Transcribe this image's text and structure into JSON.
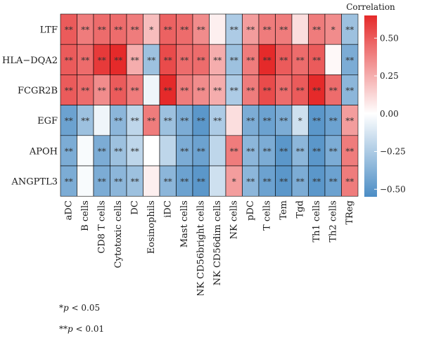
{
  "chart_data": {
    "type": "heatmap",
    "rows": [
      "LTF",
      "HLA−DQA2",
      "FCGR2B",
      "EGF",
      "APOH",
      "ANGPTL3"
    ],
    "columns": [
      "aDC",
      "B cells",
      "CD8 T cells",
      "Cytotoxic cells",
      "DC",
      "Eosinophils",
      "iDC",
      "Mast cells",
      "NK CD56bright cells",
      "NK CD56dim cells",
      "NK cells",
      "pDC",
      "T cells",
      "Tem",
      "Tgd",
      "Th1 cells",
      "Th2 cells",
      "TReg"
    ],
    "values": [
      [
        0.5,
        0.4,
        0.45,
        0.45,
        0.4,
        0.2,
        0.48,
        0.45,
        0.35,
        0.05,
        -0.25,
        0.3,
        0.4,
        0.4,
        0.1,
        0.4,
        0.35,
        -0.3
      ],
      [
        0.5,
        0.45,
        0.6,
        0.65,
        0.25,
        -0.3,
        0.55,
        0.45,
        0.45,
        0.25,
        -0.3,
        0.4,
        0.65,
        0.5,
        0.45,
        0.5,
        0.02,
        -0.4
      ],
      [
        0.5,
        0.45,
        0.35,
        0.5,
        0.4,
        -0.05,
        0.65,
        0.4,
        0.35,
        0.25,
        -0.25,
        0.4,
        0.55,
        0.45,
        0.5,
        0.65,
        0.45,
        -0.35
      ],
      [
        -0.45,
        -0.3,
        -0.05,
        -0.35,
        -0.2,
        0.4,
        -0.3,
        -0.4,
        -0.5,
        -0.25,
        0.1,
        -0.4,
        -0.45,
        -0.4,
        -0.15,
        -0.5,
        -0.45,
        0.3
      ],
      [
        -0.4,
        -0.02,
        -0.4,
        -0.3,
        -0.2,
        0.0,
        -0.2,
        -0.4,
        -0.45,
        -0.2,
        0.4,
        -0.35,
        -0.4,
        -0.5,
        -0.35,
        -0.5,
        -0.4,
        0.4
      ],
      [
        -0.4,
        -0.02,
        -0.4,
        -0.35,
        -0.3,
        0.05,
        -0.35,
        -0.45,
        -0.5,
        -0.15,
        0.3,
        -0.35,
        -0.45,
        -0.5,
        -0.4,
        -0.5,
        -0.45,
        0.4
      ]
    ],
    "stars": [
      [
        "**",
        "**",
        "**",
        "**",
        "**",
        "*",
        "**",
        "**",
        "**",
        "",
        "**",
        "**",
        "**",
        "**",
        "",
        "**",
        "*",
        "**"
      ],
      [
        "**",
        "**",
        "**",
        "**",
        "**",
        "**",
        "**",
        "**",
        "**",
        "**",
        "**",
        "**",
        "**",
        "**",
        "**",
        "**",
        "",
        "**"
      ],
      [
        "**",
        "**",
        "**",
        "**",
        "**",
        "",
        "**",
        "**",
        "**",
        "**",
        "**",
        "**",
        "**",
        "**",
        "**",
        "**",
        "**",
        "**"
      ],
      [
        "**",
        "**",
        "",
        "**",
        "**",
        "**",
        "**",
        "**",
        "**",
        "**",
        "",
        "**",
        "**",
        "**",
        "*",
        "**",
        "**",
        "**"
      ],
      [
        "**",
        "",
        "**",
        "**",
        "**",
        "",
        "",
        "**",
        "**",
        "",
        "**",
        "**",
        "**",
        "**",
        "**",
        "**",
        "**",
        "**"
      ],
      [
        "**",
        "",
        "**",
        "**",
        "**",
        "",
        "**",
        "**",
        "**",
        "",
        "*",
        "**",
        "**",
        "**",
        "**",
        "**",
        "**",
        "**"
      ]
    ],
    "legend": {
      "title": "Correlation",
      "range": [
        -0.55,
        0.65
      ],
      "ticks": [
        0.5,
        0.25,
        0.0,
        -0.25,
        -0.5
      ],
      "tick_labels": [
        "0.50",
        "0.25",
        "0.00",
        "−0.25",
        "−0.50"
      ]
    },
    "colors": {
      "positive": "#e52a2a",
      "neutral": "#ffffff",
      "negative": "#4b8dc5"
    }
  },
  "footnotes": [
    {
      "stars": "*",
      "p": "p",
      "text": " < 0.05"
    },
    {
      "stars": "**",
      "p": "p",
      "text": " < 0.01"
    }
  ]
}
